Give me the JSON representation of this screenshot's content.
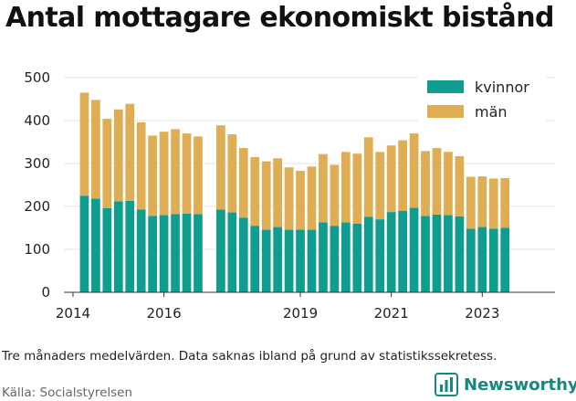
{
  "title": "Antal mottagare ekonomiskt bistånd",
  "note": "Tre månaders medelvärden. Data saknas ibland på grund av statistikssekretess.",
  "source": "Källa: Socialstyrelsen",
  "brand": {
    "name": "Newsworthy",
    "icon": "bar-chart-icon",
    "color": "#15897f"
  },
  "chart_data": {
    "type": "bar",
    "stacked": true,
    "x_unit": "quarter",
    "x_start": 2014.25,
    "x_step": 0.25,
    "xlim": [
      2013.8,
      2024.6
    ],
    "ylim": [
      0,
      500
    ],
    "y_ticks": [
      0,
      100,
      200,
      300,
      400,
      500
    ],
    "x_ticks": [
      2014,
      2016,
      2019,
      2021,
      2023
    ],
    "x_tick_labels": [
      "2014",
      "2016",
      "2019",
      "2021",
      "2023"
    ],
    "grid": "horizontal",
    "legend_position": "top-right",
    "series": [
      {
        "name": "kvinnor",
        "color": "#0f9d8f",
        "values": [
          225,
          218,
          196,
          212,
          213,
          193,
          178,
          180,
          182,
          183,
          182,
          null,
          193,
          186,
          174,
          155,
          146,
          152,
          146,
          146,
          146,
          163,
          155,
          163,
          160,
          176,
          170,
          187,
          190,
          197,
          178,
          181,
          180,
          177,
          148,
          152,
          148,
          150
        ]
      },
      {
        "name": "män",
        "color": "#dfae54",
        "values": [
          240,
          230,
          208,
          214,
          226,
          203,
          187,
          194,
          198,
          187,
          181,
          null,
          196,
          182,
          162,
          160,
          159,
          160,
          145,
          137,
          147,
          159,
          142,
          164,
          163,
          185,
          157,
          155,
          164,
          173,
          151,
          155,
          147,
          140,
          121,
          118,
          117,
          116
        ]
      }
    ]
  }
}
